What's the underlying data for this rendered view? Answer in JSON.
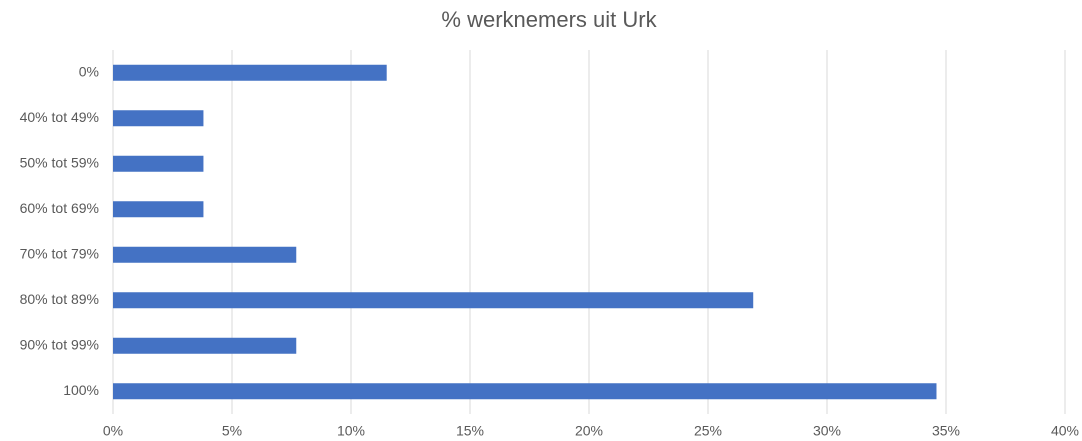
{
  "chart_data": {
    "type": "bar",
    "orientation": "horizontal",
    "title": "% werknemers uit Urk",
    "categories": [
      "0%",
      "40% tot 49%",
      "50% tot 59%",
      "60% tot 69%",
      "70% tot 79%",
      "80% tot 89%",
      "90% tot 99%",
      "100%"
    ],
    "values": [
      11.5,
      3.8,
      3.8,
      3.8,
      7.7,
      26.9,
      7.7,
      34.6
    ],
    "color": "#4472c4",
    "xlim": [
      0,
      40
    ],
    "xticks": [
      {
        "value": 0,
        "label": "0%"
      },
      {
        "value": 5,
        "label": "5%"
      },
      {
        "value": 10,
        "label": "10%"
      },
      {
        "value": 15,
        "label": "15%"
      },
      {
        "value": 20,
        "label": "20%"
      },
      {
        "value": 25,
        "label": "25%"
      },
      {
        "value": 30,
        "label": "30%"
      },
      {
        "value": 35,
        "label": "35%"
      },
      {
        "value": 40,
        "label": "40%"
      }
    ],
    "grid": true
  }
}
